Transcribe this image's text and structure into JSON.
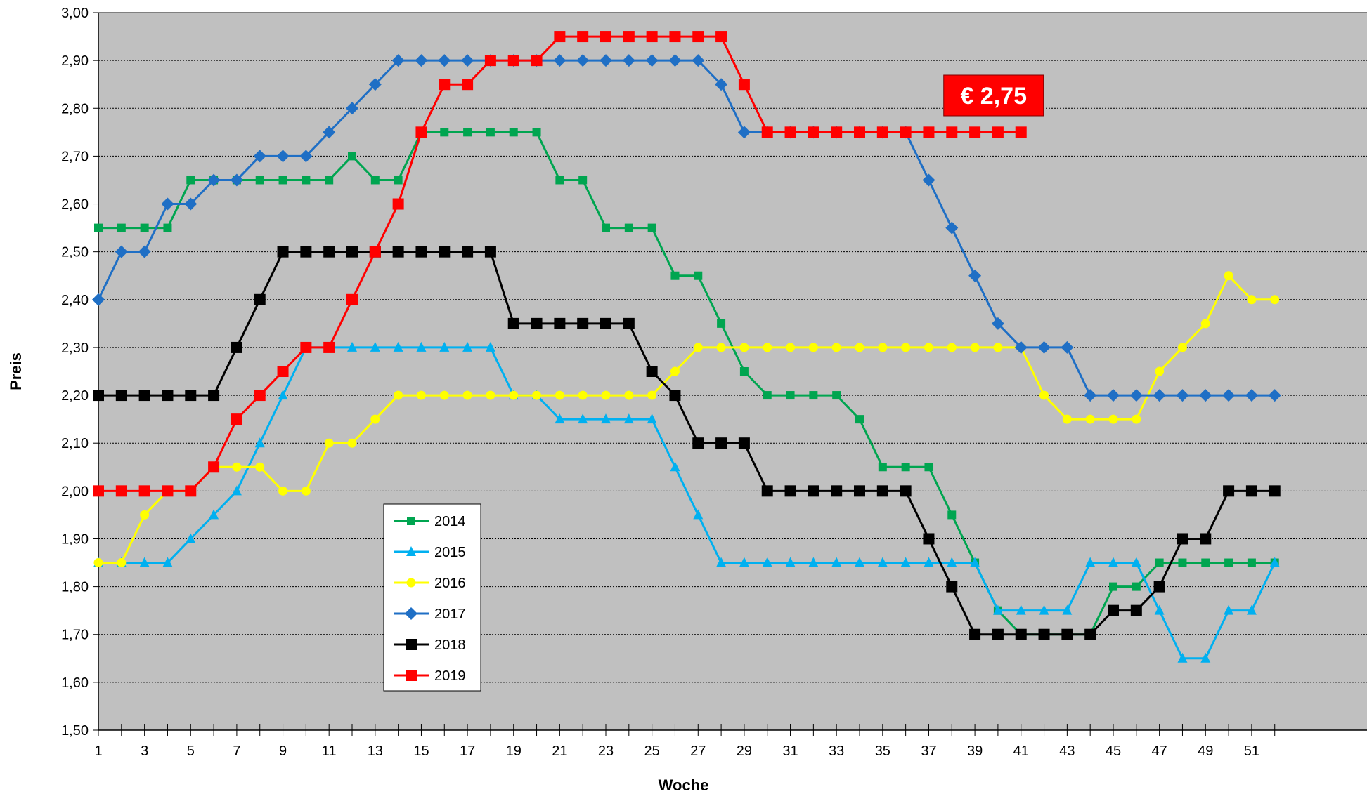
{
  "chart_data": {
    "type": "line",
    "xlabel": "Woche",
    "ylabel": "Preis",
    "xlim": [
      1,
      52
    ],
    "ylim": [
      1.5,
      3.0
    ],
    "y_ticks": [
      "1,50",
      "1,60",
      "1,70",
      "1,80",
      "1,90",
      "2,00",
      "2,10",
      "2,20",
      "2,30",
      "2,40",
      "2,50",
      "2,60",
      "2,70",
      "2,80",
      "2,90",
      "3,00"
    ],
    "x_ticks": [
      "1",
      "3",
      "5",
      "7",
      "9",
      "11",
      "13",
      "15",
      "17",
      "19",
      "21",
      "23",
      "25",
      "27",
      "29",
      "31",
      "33",
      "35",
      "37",
      "39",
      "41",
      "43",
      "45",
      "47",
      "49",
      "51"
    ],
    "grid": "horizontal",
    "background": "#C0C0C0",
    "legend_position": "lower-left",
    "callout": {
      "text": "€ 2,75",
      "color": "#FF0000",
      "near_week": 41
    },
    "series": [
      {
        "name": "2014",
        "color": "#00A550",
        "marker": "square",
        "values": [
          2.55,
          2.55,
          2.55,
          2.55,
          2.65,
          2.65,
          2.65,
          2.65,
          2.65,
          2.65,
          2.65,
          2.7,
          2.65,
          2.65,
          2.75,
          2.75,
          2.75,
          2.75,
          2.75,
          2.75,
          2.65,
          2.65,
          2.55,
          2.55,
          2.55,
          2.45,
          2.45,
          2.35,
          2.25,
          2.2,
          2.2,
          2.2,
          2.2,
          2.15,
          2.05,
          2.05,
          2.05,
          1.95,
          1.85,
          1.75,
          1.7,
          1.7,
          1.7,
          1.7,
          1.8,
          1.8,
          1.85,
          1.85,
          1.85,
          1.85,
          1.85,
          1.85
        ]
      },
      {
        "name": "2015",
        "color": "#00B0F0",
        "marker": "triangle",
        "values": [
          1.85,
          1.85,
          1.85,
          1.85,
          1.9,
          1.95,
          2.0,
          2.1,
          2.2,
          2.3,
          2.3,
          2.3,
          2.3,
          2.3,
          2.3,
          2.3,
          2.3,
          2.3,
          2.2,
          2.2,
          2.15,
          2.15,
          2.15,
          2.15,
          2.15,
          2.05,
          1.95,
          1.85,
          1.85,
          1.85,
          1.85,
          1.85,
          1.85,
          1.85,
          1.85,
          1.85,
          1.85,
          1.85,
          1.85,
          1.75,
          1.75,
          1.75,
          1.75,
          1.85,
          1.85,
          1.85,
          1.75,
          1.65,
          1.65,
          1.75,
          1.75,
          1.85
        ]
      },
      {
        "name": "2016",
        "color": "#FFFF00",
        "marker": "circle",
        "values": [
          1.85,
          1.85,
          1.95,
          2.0,
          2.0,
          2.05,
          2.05,
          2.05,
          2.0,
          2.0,
          2.1,
          2.1,
          2.15,
          2.2,
          2.2,
          2.2,
          2.2,
          2.2,
          2.2,
          2.2,
          2.2,
          2.2,
          2.2,
          2.2,
          2.2,
          2.25,
          2.3,
          2.3,
          2.3,
          2.3,
          2.3,
          2.3,
          2.3,
          2.3,
          2.3,
          2.3,
          2.3,
          2.3,
          2.3,
          2.3,
          2.3,
          2.2,
          2.15,
          2.15,
          2.15,
          2.15,
          2.25,
          2.3,
          2.35,
          2.45,
          2.4,
          2.4
        ]
      },
      {
        "name": "2017",
        "color": "#1F6FC5",
        "marker": "diamond",
        "values": [
          2.4,
          2.5,
          2.5,
          2.6,
          2.6,
          2.65,
          2.65,
          2.7,
          2.7,
          2.7,
          2.75,
          2.8,
          2.85,
          2.9,
          2.9,
          2.9,
          2.9,
          2.9,
          2.9,
          2.9,
          2.9,
          2.9,
          2.9,
          2.9,
          2.9,
          2.9,
          2.9,
          2.85,
          2.75,
          2.75,
          2.75,
          2.75,
          2.75,
          2.75,
          2.75,
          2.75,
          2.65,
          2.55,
          2.45,
          2.35,
          2.3,
          2.3,
          2.3,
          2.2,
          2.2,
          2.2,
          2.2,
          2.2,
          2.2,
          2.2,
          2.2,
          2.2
        ]
      },
      {
        "name": "2018",
        "color": "#000000",
        "marker": "square-large",
        "values": [
          2.2,
          2.2,
          2.2,
          2.2,
          2.2,
          2.2,
          2.3,
          2.4,
          2.5,
          2.5,
          2.5,
          2.5,
          2.5,
          2.5,
          2.5,
          2.5,
          2.5,
          2.5,
          2.35,
          2.35,
          2.35,
          2.35,
          2.35,
          2.35,
          2.25,
          2.2,
          2.1,
          2.1,
          2.1,
          2.0,
          2.0,
          2.0,
          2.0,
          2.0,
          2.0,
          2.0,
          1.9,
          1.8,
          1.7,
          1.7,
          1.7,
          1.7,
          1.7,
          1.7,
          1.75,
          1.75,
          1.8,
          1.9,
          1.9,
          2.0,
          2.0,
          2.0
        ]
      },
      {
        "name": "2019",
        "color": "#FF0000",
        "marker": "square-large",
        "values": [
          2.0,
          2.0,
          2.0,
          2.0,
          2.0,
          2.05,
          2.15,
          2.2,
          2.25,
          2.3,
          2.3,
          2.4,
          2.5,
          2.6,
          2.75,
          2.85,
          2.85,
          2.9,
          2.9,
          2.9,
          2.95,
          2.95,
          2.95,
          2.95,
          2.95,
          2.95,
          2.95,
          2.95,
          2.85,
          2.75,
          2.75,
          2.75,
          2.75,
          2.75,
          2.75,
          2.75,
          2.75,
          2.75,
          2.75,
          2.75,
          2.75
        ]
      }
    ]
  }
}
